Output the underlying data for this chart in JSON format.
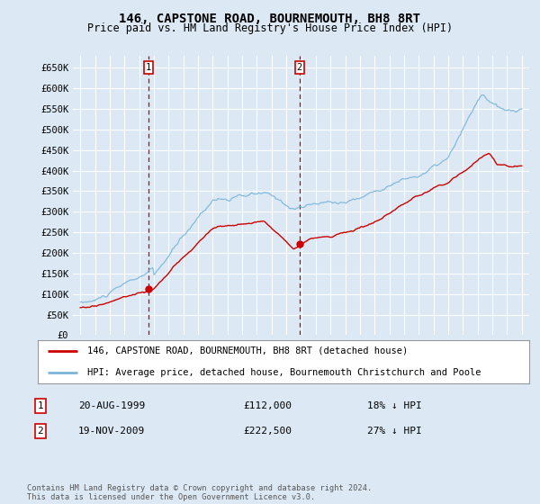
{
  "title": "146, CAPSTONE ROAD, BOURNEMOUTH, BH8 8RT",
  "subtitle": "Price paid vs. HM Land Registry's House Price Index (HPI)",
  "yticks": [
    0,
    50000,
    100000,
    150000,
    200000,
    250000,
    300000,
    350000,
    400000,
    450000,
    500000,
    550000,
    600000,
    650000
  ],
  "ytick_labels": [
    "£0",
    "£50K",
    "£100K",
    "£150K",
    "£200K",
    "£250K",
    "£300K",
    "£350K",
    "£400K",
    "£450K",
    "£500K",
    "£550K",
    "£600K",
    "£650K"
  ],
  "background_color": "#dce9f5",
  "plot_bg_color": "#dce9f5",
  "grid_color": "#ffffff",
  "hpi_color": "#7ab5d9",
  "price_color": "#cc0000",
  "sale1_x": 1999.639,
  "sale1_y": 112000,
  "sale2_x": 2009.896,
  "sale2_y": 222500,
  "legend_line1": "146, CAPSTONE ROAD, BOURNEMOUTH, BH8 8RT (detached house)",
  "legend_line2": "HPI: Average price, detached house, Bournemouth Christchurch and Poole",
  "sale1_date": "20-AUG-1999",
  "sale1_price": "£112,000",
  "sale1_hpi": "18% ↓ HPI",
  "sale2_date": "19-NOV-2009",
  "sale2_price": "£222,500",
  "sale2_hpi": "27% ↓ HPI",
  "footer": "Contains HM Land Registry data © Crown copyright and database right 2024.\nThis data is licensed under the Open Government Licence v3.0.",
  "xmin": 1994.5,
  "xmax": 2025.5,
  "ymin": 0,
  "ymax": 680000
}
